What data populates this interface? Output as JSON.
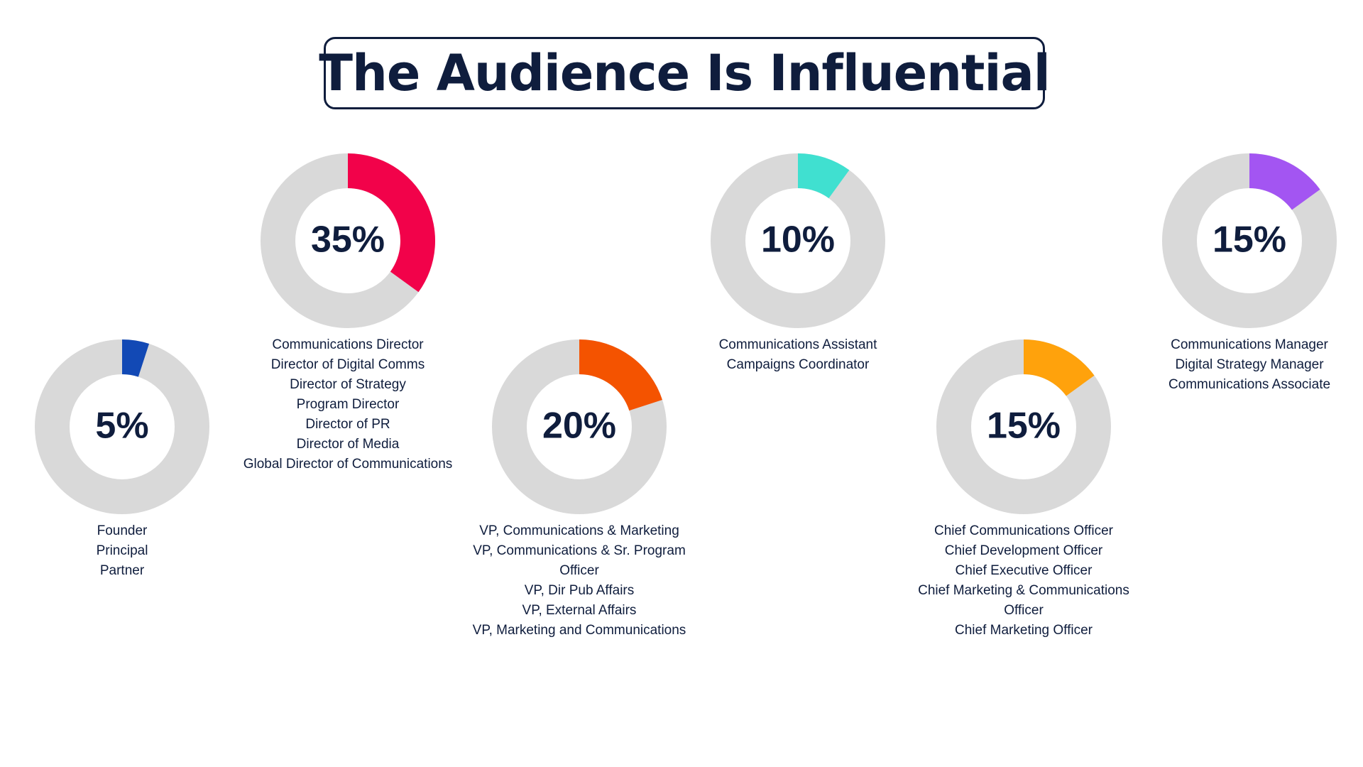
{
  "title": "The Audience Is Influential",
  "chart_data": [
    {
      "type": "pie",
      "value": 5,
      "label": "5%",
      "color": "#1249b5",
      "track_color": "#d9d9d9",
      "categories": [
        "Founder",
        "Principal",
        "Partner"
      ]
    },
    {
      "type": "pie",
      "value": 35,
      "label": "35%",
      "color": "#f2024a",
      "track_color": "#d9d9d9",
      "categories": [
        "Communications Director",
        "Director of Digital Comms",
        "Director of Strategy",
        "Program Director",
        "Director of PR",
        "Director of Media",
        "Global Director of Communications"
      ]
    },
    {
      "type": "pie",
      "value": 20,
      "label": "20%",
      "color": "#f45300",
      "track_color": "#d9d9d9",
      "categories": [
        "VP, Communications & Marketing",
        "VP, Communications & Sr. Program Officer",
        "VP, Dir Pub Affairs",
        "VP, External Affairs",
        "VP, Marketing and Communications"
      ]
    },
    {
      "type": "pie",
      "value": 10,
      "label": "10%",
      "color": "#40e0d0",
      "track_color": "#d9d9d9",
      "categories": [
        "Communications Assistant",
        "Campaigns Coordinator"
      ]
    },
    {
      "type": "pie",
      "value": 15,
      "label": "15%",
      "color": "#ffa20c",
      "track_color": "#d9d9d9",
      "categories": [
        "Chief Communications Officer",
        "Chief Development Officer",
        "Chief Executive Officer",
        "Chief Marketing & Communications Officer",
        "Chief Marketing Officer"
      ]
    },
    {
      "type": "pie",
      "value": 15,
      "label": "15%",
      "color": "#a355f2",
      "track_color": "#d9d9d9",
      "categories": [
        "Communications Manager",
        "Digital Strategy Manager",
        "Communications Associate"
      ]
    }
  ]
}
